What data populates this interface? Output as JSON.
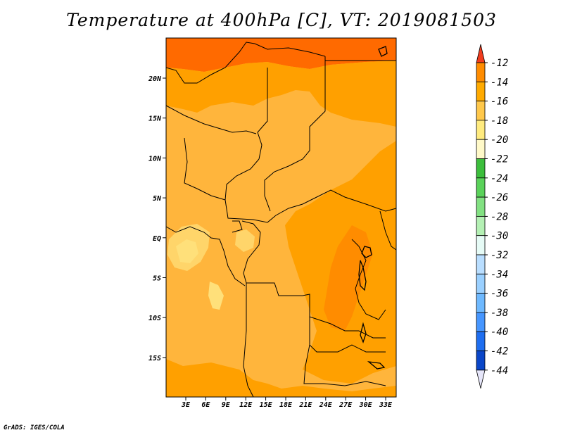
{
  "title": "Temperature at 400hPa [C], VT: 2019081503",
  "footer": "GrADS: IGES/COLA",
  "map": {
    "lon_labels": [
      "3E",
      "6E",
      "9E",
      "12E",
      "15E",
      "18E",
      "21E",
      "24E",
      "27E",
      "30E",
      "33E"
    ],
    "lat_labels": [
      "20N",
      "15N",
      "10N",
      "5N",
      "EQ",
      "5S",
      "10S",
      "15S"
    ],
    "colors": {
      "minus13": "#ff6a00",
      "minus15": "#ffa000",
      "minus17": "#ffbe3c",
      "minus19": "#ffe07a",
      "land_border": "#000000"
    }
  },
  "colorbar": {
    "labels": [
      "-12",
      "-14",
      "-16",
      "-18",
      "-20",
      "-22",
      "-24",
      "-26",
      "-28",
      "-30",
      "-32",
      "-34",
      "-36",
      "-38",
      "-40",
      "-42",
      "-44"
    ],
    "colors": [
      "#ff5a00",
      "#ff8c00",
      "#ffaa00",
      "#ffc84b",
      "#ffeb7f",
      "#fff9c8",
      "#3cbe3c",
      "#5ad25a",
      "#82e182",
      "#b4f0b4",
      "#e6fbf6",
      "#b9deff",
      "#9ad0ff",
      "#6eb9ff",
      "#4696ff",
      "#1e6ef0",
      "#0a46c8",
      "#001e8c"
    ],
    "top_arrow_color": "#f03c1e",
    "bottom_arrow_color": "#e6e6fa"
  }
}
